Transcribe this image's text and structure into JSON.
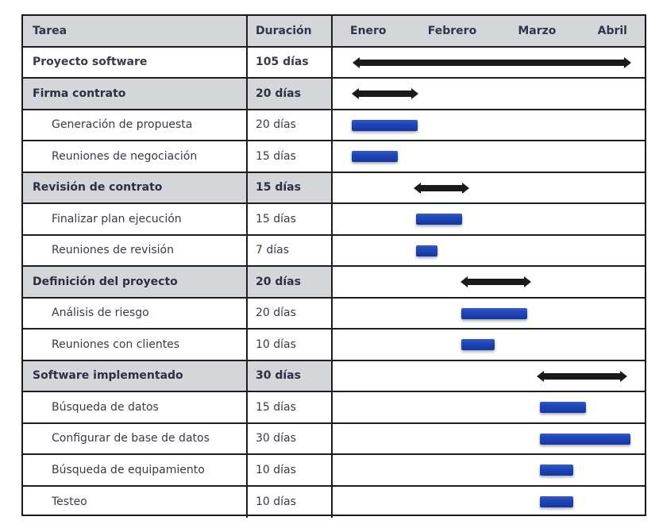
{
  "header": {
    "task": "Tarea",
    "duration": "Duración",
    "months": [
      "Enero",
      "Febrero",
      "Marzo",
      "Abril"
    ]
  },
  "rows": [
    {
      "task": "Proyecto software",
      "duration": "105 días",
      "type": "summary",
      "start": 444,
      "end": 795
    },
    {
      "task": "Firma contrato",
      "duration": "20 días",
      "type": "group",
      "start": 443,
      "end": 527
    },
    {
      "task": "Generación de propuesta",
      "duration": "20 días",
      "type": "task",
      "start": 443,
      "end": 526
    },
    {
      "task": "Reuniones de negociación",
      "duration": "15 días",
      "type": "task",
      "start": 443,
      "end": 501
    },
    {
      "task": "Revisión de contrato",
      "duration": "15 días",
      "type": "group",
      "start": 521,
      "end": 591
    },
    {
      "task": "Finalizar plan ejecución",
      "duration": "15 días",
      "type": "task",
      "start": 524,
      "end": 582
    },
    {
      "task": "Reuniones de revisión",
      "duration": "7 días",
      "type": "task",
      "start": 524,
      "end": 551
    },
    {
      "task": "Definición del proyecto",
      "duration": "20 días",
      "type": "group",
      "start": 580,
      "end": 669
    },
    {
      "task": "Análisis de riesgo",
      "duration": "20 días",
      "type": "task",
      "start": 581,
      "end": 664
    },
    {
      "task": "Reuniones con clientes",
      "duration": "10 días",
      "type": "task",
      "start": 581,
      "end": 623
    },
    {
      "task": "Software implementado",
      "duration": "30 días",
      "type": "group",
      "start": 676,
      "end": 790
    },
    {
      "task": "Búsqueda de datos",
      "duration": "15 días",
      "type": "task",
      "start": 680,
      "end": 738
    },
    {
      "task": "Configurar de base de datos",
      "duration": "30 días",
      "type": "task",
      "start": 680,
      "end": 794
    },
    {
      "task": "Búsqueda de equipamiento",
      "duration": "10 días",
      "type": "task",
      "start": 680,
      "end": 722
    },
    {
      "task": "Testeo",
      "duration": "10 días",
      "type": "task",
      "start": 680,
      "end": 722
    }
  ],
  "colors": {
    "task_bar": "#1e46b8",
    "summary_arrow": "#1a1a1a",
    "header_bg": "#d4d6d9",
    "border": "#1e1e1e"
  },
  "chart_data": {
    "type": "gantt",
    "title": "",
    "columns": [
      "Tarea",
      "Duración"
    ],
    "timeline_labels": [
      "Enero",
      "Febrero",
      "Marzo",
      "Abril"
    ],
    "tasks": [
      {
        "name": "Proyecto software",
        "duration_days": 105,
        "level": 0,
        "kind": "summary"
      },
      {
        "name": "Firma contrato",
        "duration_days": 20,
        "level": 1,
        "kind": "summary"
      },
      {
        "name": "Generación de propuesta",
        "duration_days": 20,
        "level": 2,
        "kind": "task"
      },
      {
        "name": "Reuniones de negociación",
        "duration_days": 15,
        "level": 2,
        "kind": "task"
      },
      {
        "name": "Revisión de contrato",
        "duration_days": 15,
        "level": 1,
        "kind": "summary"
      },
      {
        "name": "Finalizar plan ejecución",
        "duration_days": 15,
        "level": 2,
        "kind": "task"
      },
      {
        "name": "Reuniones de revisión",
        "duration_days": 7,
        "level": 2,
        "kind": "task"
      },
      {
        "name": "Definición del proyecto",
        "duration_days": 20,
        "level": 1,
        "kind": "summary"
      },
      {
        "name": "Análisis de riesgo",
        "duration_days": 20,
        "level": 2,
        "kind": "task"
      },
      {
        "name": "Reuniones con clientes",
        "duration_days": 10,
        "level": 2,
        "kind": "task"
      },
      {
        "name": "Software implementado",
        "duration_days": 30,
        "level": 1,
        "kind": "summary"
      },
      {
        "name": "Búsqueda de datos",
        "duration_days": 15,
        "level": 2,
        "kind": "task"
      },
      {
        "name": "Configurar de base de datos",
        "duration_days": 30,
        "level": 2,
        "kind": "task"
      },
      {
        "name": "Búsqueda de equipamiento",
        "duration_days": 10,
        "level": 2,
        "kind": "task"
      },
      {
        "name": "Testeo",
        "duration_days": 10,
        "level": 2,
        "kind": "task"
      }
    ]
  }
}
